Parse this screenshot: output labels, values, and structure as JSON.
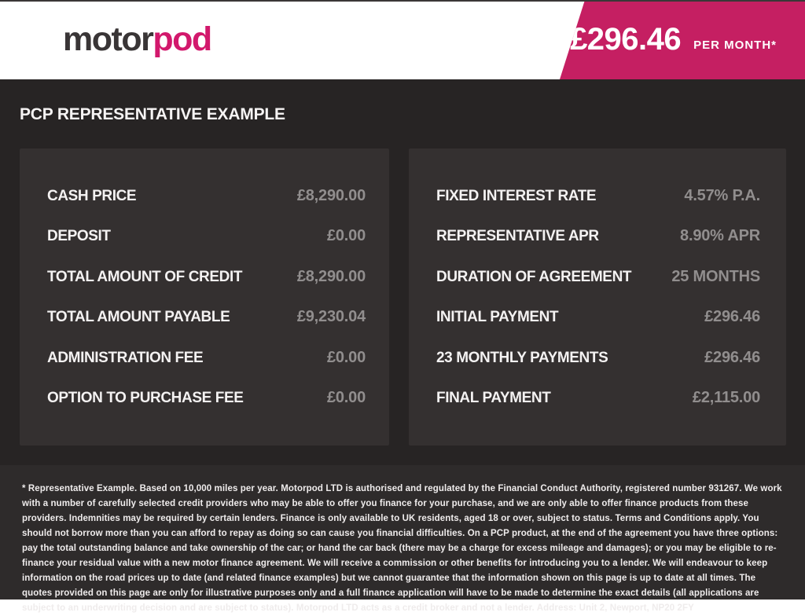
{
  "header": {
    "logo": {
      "motor": "motor",
      "pod": "pod"
    },
    "ribbon": {
      "amount": "£296.46",
      "period": "PER MONTH*"
    }
  },
  "main": {
    "heading": "PCP REPRESENTATIVE EXAMPLE",
    "left_panel": {
      "rows": [
        {
          "label": "CASH PRICE",
          "value": "£8,290.00"
        },
        {
          "label": "DEPOSIT",
          "value": "£0.00"
        },
        {
          "label": "TOTAL AMOUNT OF CREDIT",
          "value": "£8,290.00"
        },
        {
          "label": "TOTAL AMOUNT PAYABLE",
          "value": "£9,230.04"
        },
        {
          "label": "ADMINISTRATION FEE",
          "value": "£0.00"
        },
        {
          "label": "OPTION TO PURCHASE FEE",
          "value": "£0.00"
        }
      ]
    },
    "right_panel": {
      "rows": [
        {
          "label": "FIXED INTEREST RATE",
          "value": "4.57% P.A."
        },
        {
          "label": "REPRESENTATIVE APR",
          "value": "8.90% APR"
        },
        {
          "label": "DURATION OF AGREEMENT",
          "value": "25 MONTHS"
        },
        {
          "label": "INITIAL PAYMENT",
          "value": "£296.46"
        },
        {
          "label": "23 MONTHLY PAYMENTS",
          "value": "£296.46"
        },
        {
          "label": "FINAL PAYMENT",
          "value": "£2,115.00"
        }
      ]
    }
  },
  "footer": {
    "disclaimer": "* Representative Example. Based on 10,000 miles per year. Motorpod LTD is authorised and regulated by the Financial Conduct Authority, registered number 931267. We work with a number of carefully selected credit providers who may be able to offer you finance for your purchase, and we are only able to offer finance products from these providers. Indemnities may be required by certain lenders. Finance is only available to UK residents, aged 18 or over, subject to status. Terms and Conditions apply. You should not borrow more than you can afford to repay as doing so can cause you financial difficulties. On a PCP product, at the end of the agreement you have three options: pay the total outstanding balance and take ownership of the car; or hand the car back (there may be a charge for excess mileage and damages); or you may be eligible to re-finance your residual value with a new motor finance agreement. We will receive a commission or other benefits for introducing you to a lender. We will endeavour to keep information on the road prices up to date (and related finance examples) but we cannot guarantee that the information shown on this page is up to date at all times. The quotes provided on this page are only for illustrative purposes only and a full finance application will have to be made to determine the exact details (all applications are subject to an underwriting decision and are subject to status). Motorpod LTD acts as a credit broker and not a lender. Address: Unit 2, Newport, NP20 2FY"
  },
  "colors": {
    "accent_pink_ribbon": "#c51f62",
    "accent_pink_logo": "#d2186c",
    "bg_dark": "#272424",
    "panel_bg": "#343030",
    "footer_bg": "#2e2b2b",
    "value_gray": "#918e8e"
  }
}
